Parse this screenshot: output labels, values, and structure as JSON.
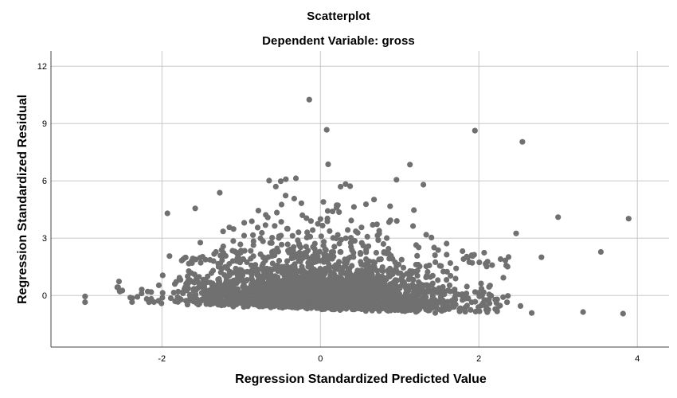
{
  "chart_data": {
    "type": "scatter",
    "title": "Scatterplot",
    "subtitle": "Dependent Variable: gross",
    "xlabel": "Regression Standardized Predicted Value",
    "ylabel": "Regression Standardized Residual",
    "xlim": [
      -3.4,
      4.4
    ],
    "ylim": [
      -2.7,
      12.8
    ],
    "x_ticks": [
      -2,
      0,
      2,
      4
    ],
    "y_ticks": [
      0,
      3,
      6,
      9,
      12
    ],
    "grid": true,
    "marker_color": "#707070",
    "distribution_note": "dense cloud of points between x -2.5 and 3.5 with residuals mostly between -1 and 2",
    "outliers": [
      {
        "x": -0.14,
        "y": 10.25
      },
      {
        "x": 0.08,
        "y": 8.67
      },
      {
        "x": 1.95,
        "y": 8.63
      },
      {
        "x": 2.55,
        "y": 8.04
      },
      {
        "x": 1.13,
        "y": 6.85
      },
      {
        "x": 3.0,
        "y": 4.1
      },
      {
        "x": 3.89,
        "y": 4.02
      },
      {
        "x": 0.96,
        "y": 6.06
      },
      {
        "x": 1.3,
        "y": 5.8
      },
      {
        "x": -0.5,
        "y": 5.98
      },
      {
        "x": -1.27,
        "y": 5.38
      },
      {
        "x": -1.93,
        "y": 4.3
      },
      {
        "x": -1.58,
        "y": 4.56
      },
      {
        "x": 2.47,
        "y": 3.25
      },
      {
        "x": -2.97,
        "y": -0.05
      },
      {
        "x": -2.97,
        "y": -0.35
      },
      {
        "x": 3.54,
        "y": 2.28
      },
      {
        "x": 3.82,
        "y": -0.95
      },
      {
        "x": 2.79,
        "y": 2.0
      }
    ]
  }
}
